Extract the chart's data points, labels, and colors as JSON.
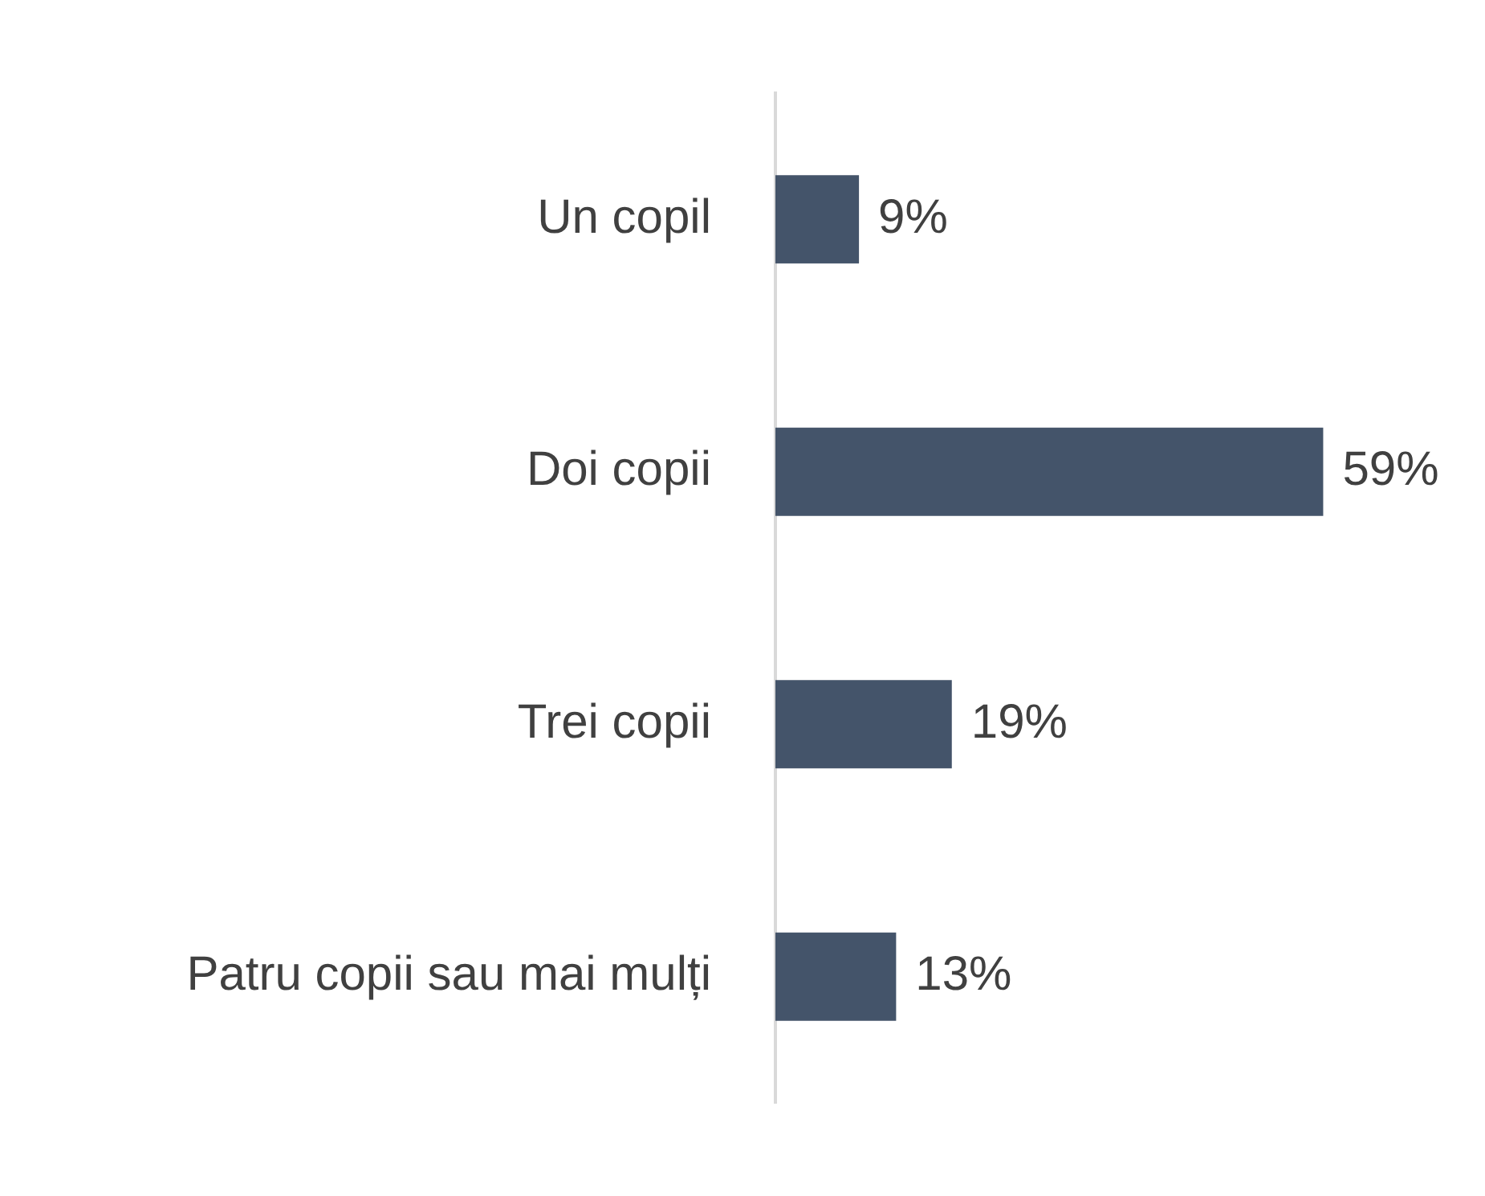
{
  "chart_data": {
    "type": "bar",
    "orientation": "horizontal",
    "categories": [
      "Un copil",
      "Doi copii",
      "Trei copii",
      "Patru copii sau mai mulți"
    ],
    "values": [
      9,
      59,
      19,
      13
    ],
    "value_labels": [
      "9%",
      "59%",
      "19%",
      "13%"
    ],
    "color": "#44546a",
    "tick_labels": "y"
  }
}
